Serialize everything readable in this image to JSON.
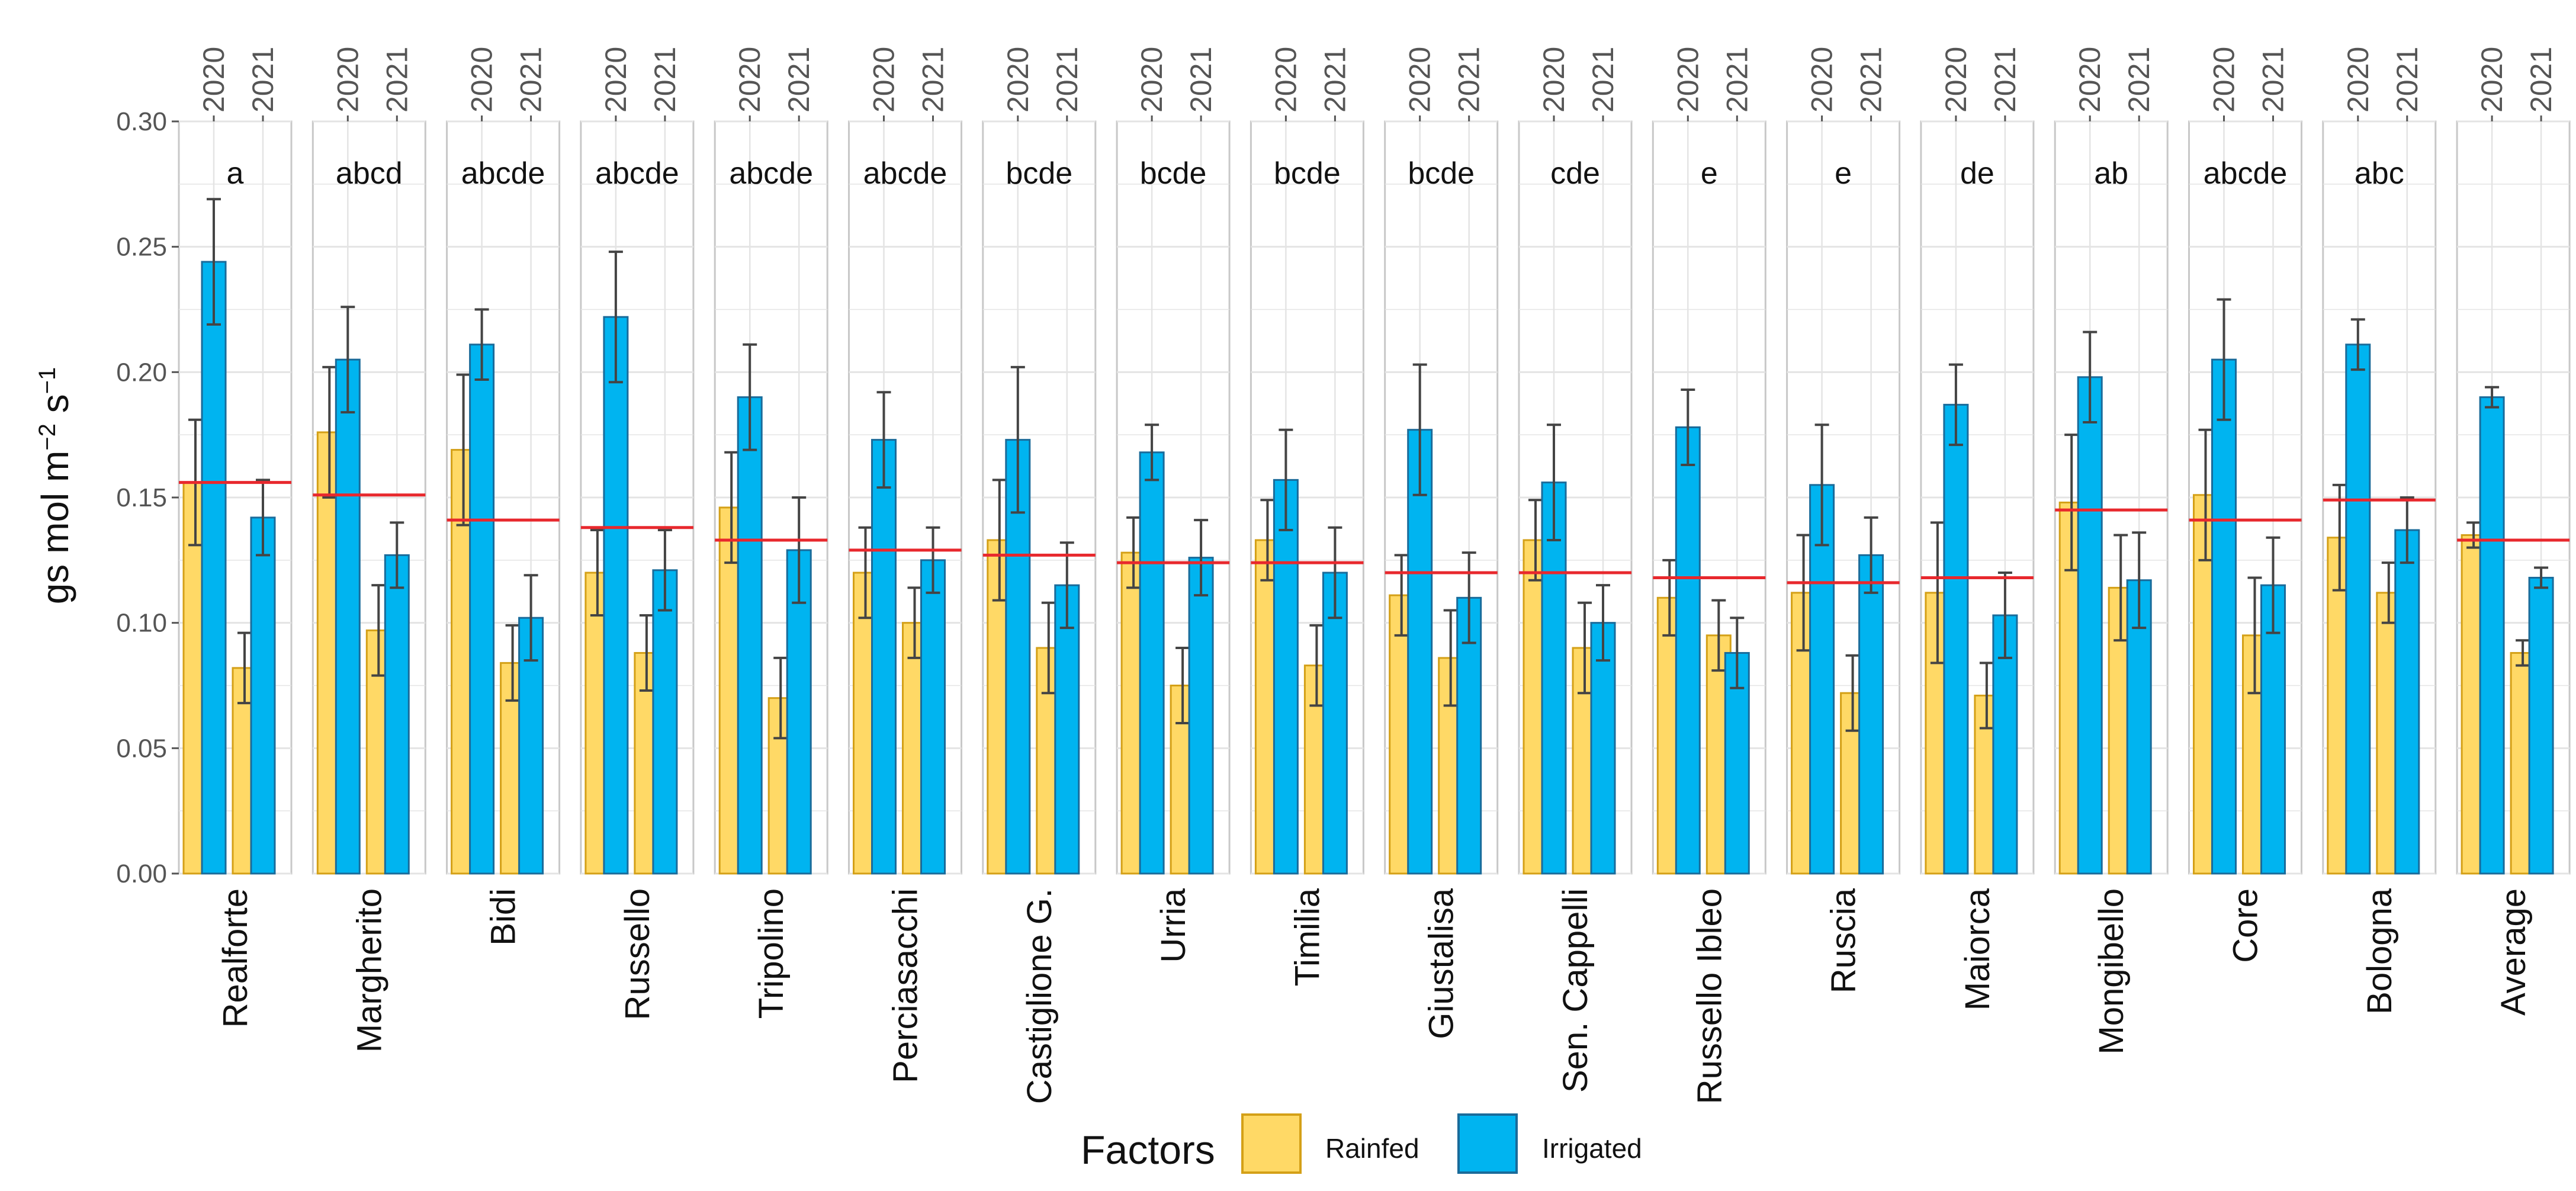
{
  "chart_data": {
    "type": "bar",
    "ylabel": "gs mol m",
    "ylabel_sup1": "−2",
    "ylabel_mid": " s",
    "ylabel_sup2": "−1",
    "ylim": [
      0,
      0.3
    ],
    "yticks": [
      "0.00",
      "0.05",
      "0.10",
      "0.15",
      "0.20",
      "0.25",
      "0.30"
    ],
    "years": [
      "2020",
      "2021"
    ],
    "legend": {
      "title": "Factors",
      "items": [
        {
          "label": "Rainfed",
          "fill": "#ffd966",
          "stroke": "#d4a017"
        },
        {
          "label": "Irrigated",
          "fill": "#00b4f0",
          "stroke": "#1a6b9a"
        }
      ]
    },
    "colors": {
      "mean_line": "#e8282d",
      "error_bar": "#444444",
      "grid": "#e4e4e4",
      "panel_border": "#c8c8c8"
    },
    "series_order": [
      "2020 Rainfed",
      "2020 Irrigated",
      "2021 Rainfed",
      "2021 Irrigated"
    ],
    "panels": [
      {
        "name": "Realforte",
        "letter": "a",
        "mean": 0.156,
        "values": [
          0.156,
          0.244,
          0.082,
          0.142
        ],
        "errors": [
          0.025,
          0.025,
          0.014,
          0.015
        ]
      },
      {
        "name": "Margherito",
        "letter": "abcd",
        "mean": 0.151,
        "values": [
          0.176,
          0.205,
          0.097,
          0.127
        ],
        "errors": [
          0.026,
          0.021,
          0.018,
          0.013
        ]
      },
      {
        "name": "Bidi",
        "letter": "abcde",
        "mean": 0.141,
        "values": [
          0.169,
          0.211,
          0.084,
          0.102
        ],
        "errors": [
          0.03,
          0.014,
          0.015,
          0.017
        ]
      },
      {
        "name": "Russello",
        "letter": "abcde",
        "mean": 0.138,
        "values": [
          0.12,
          0.222,
          0.088,
          0.121
        ],
        "errors": [
          0.017,
          0.026,
          0.015,
          0.016
        ]
      },
      {
        "name": "Tripolino",
        "letter": "abcde",
        "mean": 0.133,
        "values": [
          0.146,
          0.19,
          0.07,
          0.129
        ],
        "errors": [
          0.022,
          0.021,
          0.016,
          0.021
        ]
      },
      {
        "name": "Perciasacchi",
        "letter": "abcde",
        "mean": 0.129,
        "values": [
          0.12,
          0.173,
          0.1,
          0.125
        ],
        "errors": [
          0.018,
          0.019,
          0.014,
          0.013
        ]
      },
      {
        "name": "Castiglione G.",
        "letter": "bcde",
        "mean": 0.127,
        "values": [
          0.133,
          0.173,
          0.09,
          0.115
        ],
        "errors": [
          0.024,
          0.029,
          0.018,
          0.017
        ]
      },
      {
        "name": "Urria",
        "letter": "bcde",
        "mean": 0.124,
        "values": [
          0.128,
          0.168,
          0.075,
          0.126
        ],
        "errors": [
          0.014,
          0.011,
          0.015,
          0.015
        ]
      },
      {
        "name": "Timilia",
        "letter": "bcde",
        "mean": 0.124,
        "values": [
          0.133,
          0.157,
          0.083,
          0.12
        ],
        "errors": [
          0.016,
          0.02,
          0.016,
          0.018
        ]
      },
      {
        "name": "Giustalisa",
        "letter": "bcde",
        "mean": 0.12,
        "values": [
          0.111,
          0.177,
          0.086,
          0.11
        ],
        "errors": [
          0.016,
          0.026,
          0.019,
          0.018
        ]
      },
      {
        "name": "Sen. Cappelli",
        "letter": "cde",
        "mean": 0.12,
        "values": [
          0.133,
          0.156,
          0.09,
          0.1
        ],
        "errors": [
          0.016,
          0.023,
          0.018,
          0.015
        ]
      },
      {
        "name": "Russello Ibleo",
        "letter": "e",
        "mean": 0.118,
        "values": [
          0.11,
          0.178,
          0.095,
          0.088
        ],
        "errors": [
          0.015,
          0.015,
          0.014,
          0.014
        ]
      },
      {
        "name": "Ruscia",
        "letter": "e",
        "mean": 0.116,
        "values": [
          0.112,
          0.155,
          0.072,
          0.127
        ],
        "errors": [
          0.023,
          0.024,
          0.015,
          0.015
        ]
      },
      {
        "name": "Maiorca",
        "letter": "de",
        "mean": 0.118,
        "values": [
          0.112,
          0.187,
          0.071,
          0.103
        ],
        "errors": [
          0.028,
          0.016,
          0.013,
          0.017
        ]
      },
      {
        "name": "Mongibello",
        "letter": "ab",
        "mean": 0.145,
        "values": [
          0.148,
          0.198,
          0.114,
          0.117
        ],
        "errors": [
          0.027,
          0.018,
          0.021,
          0.019
        ]
      },
      {
        "name": "Core",
        "letter": "abcde",
        "mean": 0.141,
        "values": [
          0.151,
          0.205,
          0.095,
          0.115
        ],
        "errors": [
          0.026,
          0.024,
          0.023,
          0.019
        ]
      },
      {
        "name": "Bologna",
        "letter": "abc",
        "mean": 0.149,
        "values": [
          0.134,
          0.211,
          0.112,
          0.137
        ],
        "errors": [
          0.021,
          0.01,
          0.012,
          0.013
        ]
      },
      {
        "name": "Average",
        "letter": "",
        "mean": 0.133,
        "values": [
          0.135,
          0.19,
          0.088,
          0.118
        ],
        "errors": [
          0.005,
          0.004,
          0.005,
          0.004
        ]
      }
    ]
  }
}
